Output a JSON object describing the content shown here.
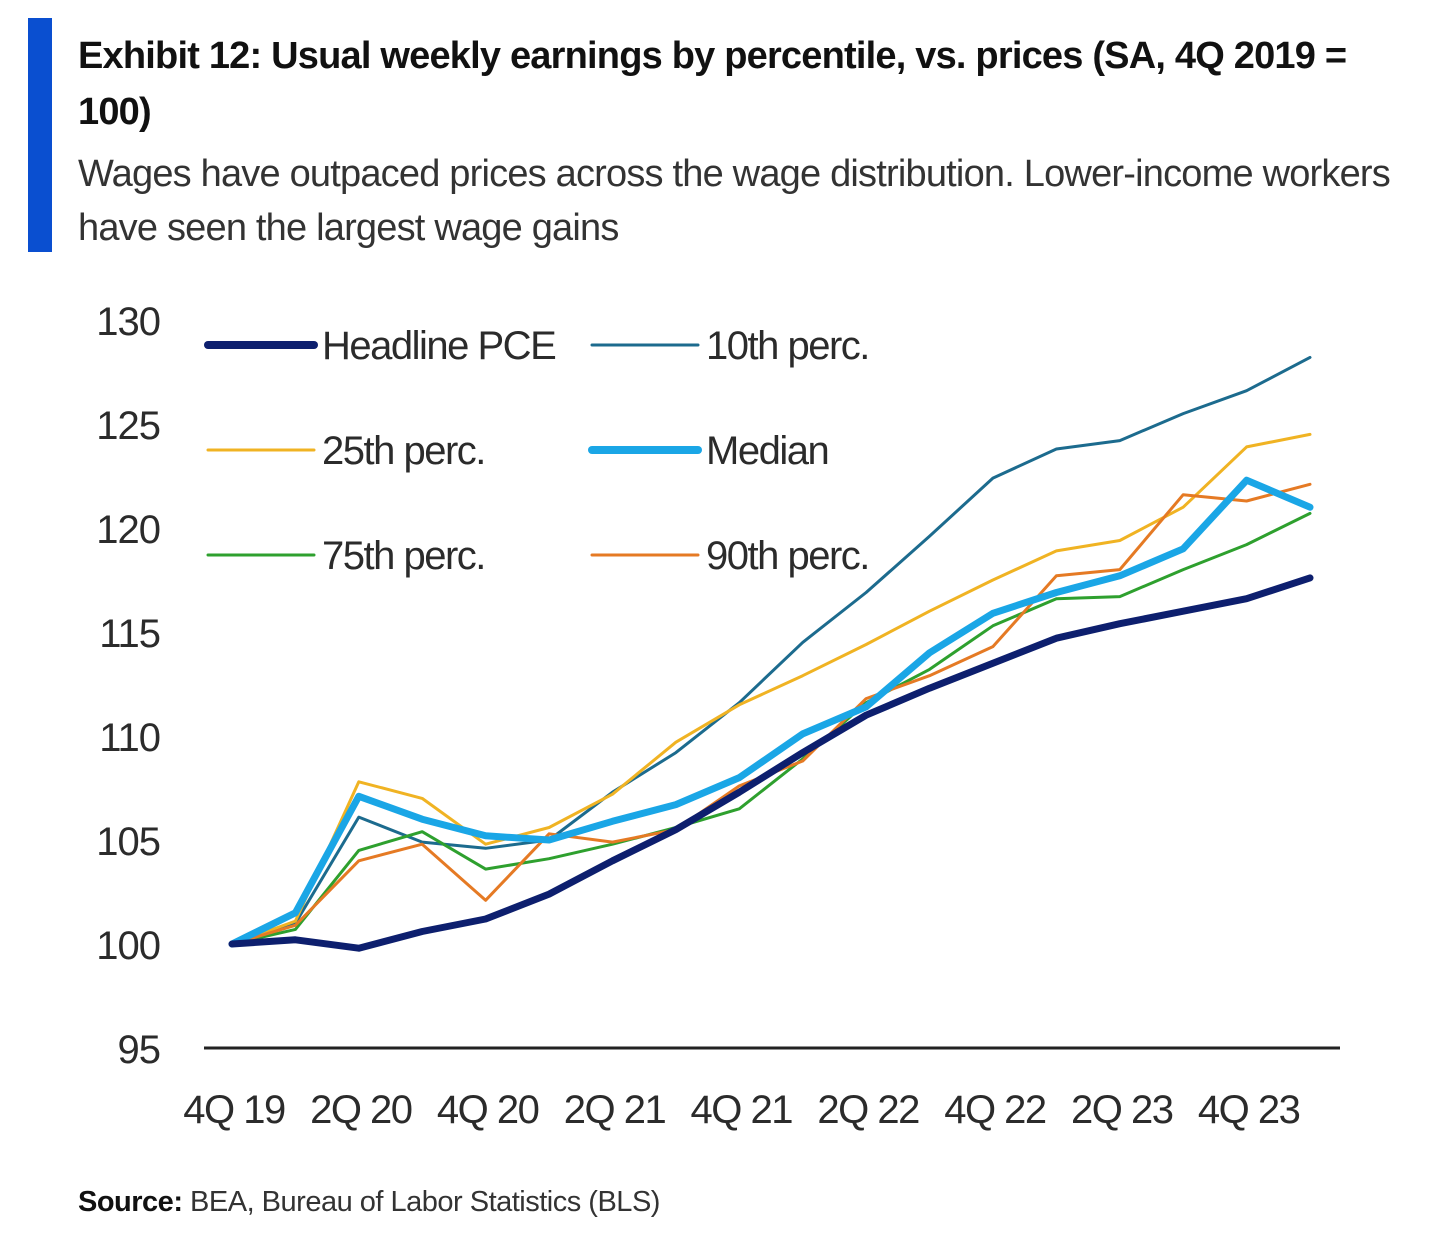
{
  "header": {
    "title": "Exhibit 12: Usual weekly earnings by percentile, vs. prices (SA, 4Q 2019 = 100)",
    "subtitle": "Wages have outpaced prices across the wage distribution. Lower-income workers have seen the largest wage gains"
  },
  "footer": {
    "source_label": "Source:",
    "source_text": " BEA, Bureau of Labor Statistics (BLS)"
  },
  "colors": {
    "accent": "#0a4fd0"
  },
  "chart_data": {
    "type": "line",
    "title": "Exhibit 12: Usual weekly earnings by percentile, vs. prices (SA, 4Q 2019 = 100)",
    "subtitle": "Wages have outpaced prices across the wage distribution. Lower-income workers have seen the largest wage gains",
    "xlabel": "",
    "ylabel": "",
    "ylim": [
      95,
      130
    ],
    "yticks": [
      95,
      100,
      105,
      110,
      115,
      120,
      125,
      130
    ],
    "grid": false,
    "legend_position": "top-left",
    "x": [
      "4Q 19",
      "1Q 20",
      "2Q 20",
      "3Q 20",
      "4Q 20",
      "1Q 21",
      "2Q 21",
      "3Q 21",
      "4Q 21",
      "1Q 22",
      "2Q 22",
      "3Q 22",
      "4Q 22",
      "1Q 23",
      "2Q 23",
      "3Q 23",
      "4Q 23",
      "1Q 24"
    ],
    "xtick_labels": [
      "4Q 19",
      "2Q 20",
      "4Q 20",
      "2Q 21",
      "4Q 21",
      "2Q 22",
      "4Q 22",
      "2Q 23",
      "4Q 23"
    ],
    "series": [
      {
        "name": "Headline PCE",
        "color": "#0d1f6e",
        "width": 7,
        "values": [
          100,
          100.2,
          99.8,
          100.6,
          101.2,
          102.4,
          104.0,
          105.5,
          107.3,
          109.2,
          111.0,
          112.3,
          113.5,
          114.7,
          115.4,
          116.0,
          116.6,
          117.6
        ]
      },
      {
        "name": "10th perc.",
        "color": "#1c6b8e",
        "width": 3,
        "values": [
          100,
          101.0,
          106.1,
          104.9,
          104.6,
          105.0,
          107.3,
          109.2,
          111.6,
          114.5,
          116.9,
          119.6,
          122.4,
          123.8,
          124.2,
          125.5,
          126.6,
          128.2
        ]
      },
      {
        "name": "25th perc.",
        "color": "#f0b323",
        "width": 3,
        "values": [
          100,
          101.1,
          107.8,
          107.0,
          104.8,
          105.6,
          107.2,
          109.7,
          111.5,
          112.9,
          114.4,
          116.0,
          117.5,
          118.9,
          119.4,
          121.0,
          123.9,
          124.5
        ]
      },
      {
        "name": "Median",
        "color": "#1aa6e6",
        "width": 7,
        "values": [
          100,
          101.5,
          107.1,
          106.0,
          105.2,
          105.0,
          105.9,
          106.7,
          108.0,
          110.1,
          111.4,
          114.0,
          115.9,
          116.9,
          117.7,
          119.0,
          122.3,
          121.0
        ]
      },
      {
        "name": "75th perc.",
        "color": "#2ea02e",
        "width": 3,
        "values": [
          100,
          100.7,
          104.5,
          105.4,
          103.6,
          104.1,
          104.8,
          105.6,
          106.5,
          108.9,
          111.6,
          113.2,
          115.3,
          116.6,
          116.7,
          118.0,
          119.2,
          120.7
        ]
      },
      {
        "name": "90th perc.",
        "color": "#e57a24",
        "width": 3,
        "values": [
          100,
          100.9,
          104.0,
          104.8,
          102.1,
          105.3,
          104.9,
          105.5,
          107.6,
          108.8,
          111.8,
          112.9,
          114.3,
          117.7,
          118.0,
          121.6,
          121.3,
          122.1
        ]
      }
    ]
  }
}
